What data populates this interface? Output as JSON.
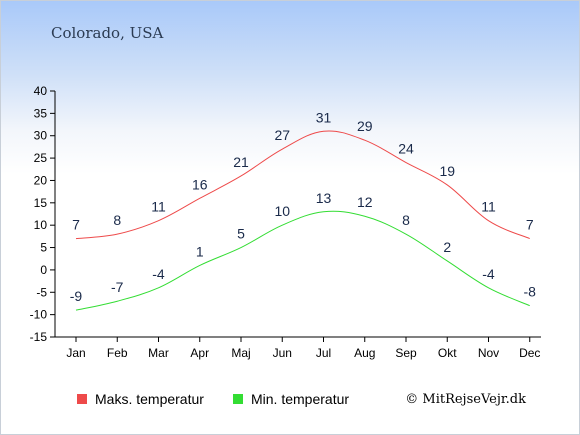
{
  "chart_data": {
    "type": "line",
    "title": "Colorado, USA",
    "categories": [
      "Jan",
      "Feb",
      "Mar",
      "Apr",
      "Maj",
      "Jun",
      "Jul",
      "Aug",
      "Sep",
      "Okt",
      "Nov",
      "Dec"
    ],
    "yticks": [
      40,
      35,
      30,
      25,
      20,
      15,
      10,
      5,
      0,
      -5,
      -10,
      -15
    ],
    "ylim": [
      -15,
      40
    ],
    "series": [
      {
        "name": "Maks. temperatur",
        "color": "#ee4a4a",
        "values": [
          7,
          8,
          11,
          16,
          21,
          27,
          31,
          29,
          24,
          19,
          11,
          7
        ]
      },
      {
        "name": "Min. temperatur",
        "color": "#33dd33",
        "values": [
          -9,
          -7,
          -4,
          1,
          5,
          10,
          13,
          12,
          8,
          2,
          -4,
          -8
        ]
      }
    ],
    "legend_position": "bottom",
    "grid": false,
    "credit": "© MitRejseVejr.dk"
  }
}
